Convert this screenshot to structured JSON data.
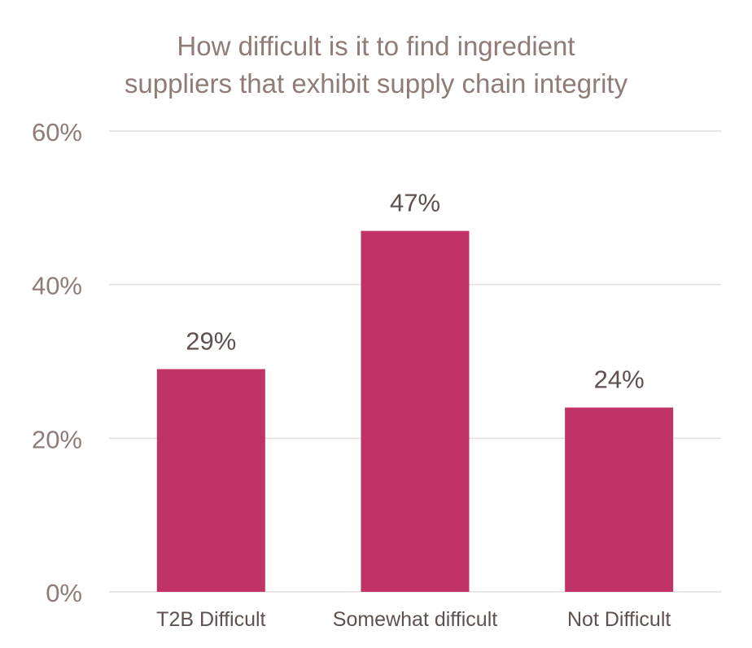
{
  "chart_data": {
    "type": "bar",
    "title_lines": [
      "How difficult is it to find ingredient",
      "suppliers that exhibit supply chain integrity"
    ],
    "categories": [
      "T2B Difficult",
      "Somewhat difficult",
      "Not Difficult"
    ],
    "values": [
      29,
      47,
      24
    ],
    "value_labels": [
      "29%",
      "47%",
      "24%"
    ],
    "ylim": [
      0,
      60
    ],
    "yticks": [
      0,
      20,
      40,
      60
    ],
    "ytick_labels": [
      "0%",
      "20%",
      "40%",
      "60%"
    ],
    "grid": true,
    "legend": "none"
  },
  "colors": {
    "bar": "#c13366",
    "grid": "#e3dede",
    "axis_text": "#8f7c76",
    "label_text": "#5f514d"
  }
}
